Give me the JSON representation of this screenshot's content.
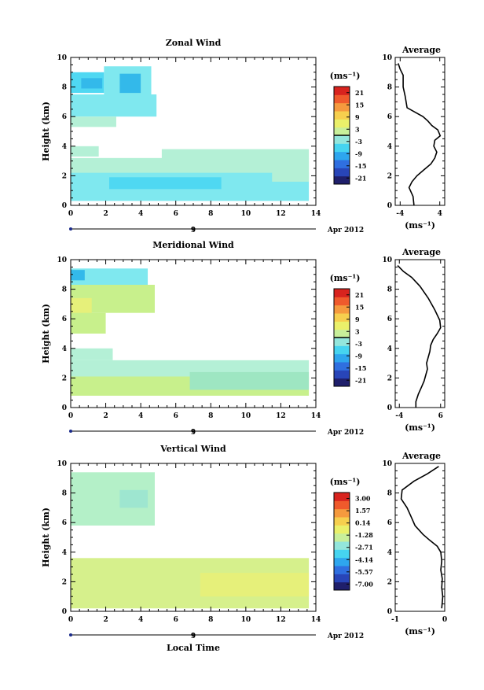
{
  "chart_data": [
    {
      "type": "heatmap",
      "title": "Zonal Wind",
      "xlabel": "",
      "ylabel": "Height (km)",
      "xlim": [
        0,
        14
      ],
      "ylim": [
        0,
        10
      ],
      "xticks": [
        "0",
        "2",
        "4",
        "6",
        "8",
        "10",
        "12",
        "14"
      ],
      "yticks": [
        "0",
        "2",
        "4",
        "6",
        "8",
        "10"
      ],
      "date_marker": "9",
      "date_label": "Apr 2012",
      "colorbar": {
        "unit": "(ms⁻¹)",
        "ticks": [
          "21",
          "15",
          "9",
          "3",
          "-3",
          "-9",
          "-15",
          "-21"
        ],
        "range": [
          -24,
          24
        ]
      },
      "patches": [
        {
          "color": "#4fd8f2",
          "t0": 0.0,
          "t1": 1.9,
          "h0": 7.6,
          "h1": 9.0
        },
        {
          "color": "#7fe8ef",
          "t0": 1.9,
          "t1": 4.6,
          "h0": 7.4,
          "h1": 9.4
        },
        {
          "color": "#33b9ea",
          "t0": 0.6,
          "t1": 1.8,
          "h0": 7.9,
          "h1": 8.6
        },
        {
          "color": "#33b9ea",
          "t0": 2.8,
          "t1": 4.0,
          "h0": 7.6,
          "h1": 8.9
        },
        {
          "color": "#7fe8ef",
          "t0": 0.0,
          "t1": 4.9,
          "h0": 6.0,
          "h1": 7.5
        },
        {
          "color": "#b4f0d6",
          "t0": 0.0,
          "t1": 2.6,
          "h0": 5.3,
          "h1": 6.0
        },
        {
          "color": "#b4f0d6",
          "t0": 0.0,
          "t1": 1.6,
          "h0": 3.3,
          "h1": 4.0
        },
        {
          "color": "#b4f0d6",
          "t0": 5.2,
          "t1": 13.6,
          "h0": 3.1,
          "h1": 3.8
        },
        {
          "color": "#b4f0d6",
          "t0": 0.0,
          "t1": 13.6,
          "h0": 2.1,
          "h1": 3.2
        },
        {
          "color": "#7fe8ef",
          "t0": 0.0,
          "t1": 13.6,
          "h0": 0.3,
          "h1": 2.2
        },
        {
          "color": "#4fd8f2",
          "t0": 2.2,
          "t1": 8.6,
          "h0": 1.1,
          "h1": 1.9
        },
        {
          "color": "#b4f0d6",
          "t0": 11.5,
          "t1": 13.6,
          "h0": 1.6,
          "h1": 3.0
        }
      ],
      "profile": {
        "xlim": [
          -5,
          5
        ],
        "xticks": [
          "-4",
          "4"
        ],
        "x": [
          -4.4,
          -4.0,
          -3.4,
          -3.4,
          -3.0,
          -2.6,
          -1.0,
          0.6,
          1.6,
          2.4,
          3.6,
          4.1,
          3.0,
          2.8,
          3.4,
          3.0,
          2.2,
          0.8,
          -0.6,
          -1.6,
          -2.2,
          -1.4,
          -1.2
        ],
        "y": [
          9.6,
          9.2,
          8.8,
          8.0,
          7.4,
          6.6,
          6.3,
          6.0,
          5.7,
          5.4,
          5.1,
          4.7,
          4.4,
          4.0,
          3.6,
          3.2,
          2.8,
          2.4,
          2.0,
          1.6,
          1.2,
          0.6,
          0.0
        ]
      }
    },
    {
      "type": "heatmap",
      "title": "Meridional Wind",
      "xlabel": "",
      "ylabel": "Height (km)",
      "xlim": [
        0,
        14
      ],
      "ylim": [
        0,
        10
      ],
      "xticks": [
        "0",
        "2",
        "4",
        "6",
        "8",
        "10",
        "12",
        "14"
      ],
      "yticks": [
        "0",
        "2",
        "4",
        "6",
        "8",
        "10"
      ],
      "date_marker": "9",
      "date_label": "Apr 2012",
      "colorbar": {
        "unit": "(ms⁻¹)",
        "ticks": [
          "21",
          "15",
          "9",
          "3",
          "-3",
          "-9",
          "-15",
          "-21"
        ],
        "range": [
          -24,
          24
        ]
      },
      "patches": [
        {
          "color": "#7fe8ef",
          "t0": 0.0,
          "t1": 4.4,
          "h0": 8.2,
          "h1": 9.4
        },
        {
          "color": "#33b9ea",
          "t0": 0.0,
          "t1": 0.8,
          "h0": 8.6,
          "h1": 9.3
        },
        {
          "color": "#c8f08c",
          "t0": 0.0,
          "t1": 4.8,
          "h0": 6.4,
          "h1": 8.3
        },
        {
          "color": "#e6f07a",
          "t0": 0.0,
          "t1": 1.2,
          "h0": 6.0,
          "h1": 7.4
        },
        {
          "color": "#c8f08c",
          "t0": 0.0,
          "t1": 2.0,
          "h0": 5.0,
          "h1": 6.4
        },
        {
          "color": "#b4f0d6",
          "t0": 0.0,
          "t1": 2.4,
          "h0": 3.2,
          "h1": 4.0
        },
        {
          "color": "#b4f0d6",
          "t0": 0.0,
          "t1": 13.6,
          "h0": 1.8,
          "h1": 3.2
        },
        {
          "color": "#c8f08c",
          "t0": 0.0,
          "t1": 13.6,
          "h0": 0.8,
          "h1": 2.1
        },
        {
          "color": "#9ee6c2",
          "t0": 6.8,
          "t1": 13.6,
          "h0": 1.2,
          "h1": 2.4
        }
      ],
      "profile": {
        "xlim": [
          -5,
          7
        ],
        "xticks": [
          "-4",
          "6"
        ],
        "x": [
          -4.4,
          -3.0,
          -1.0,
          1.0,
          3.0,
          4.6,
          5.8,
          6.0,
          5.2,
          4.2,
          3.6,
          3.4,
          3.0,
          2.6,
          2.8,
          2.4,
          2.0,
          1.4,
          0.6,
          0.0,
          0.0
        ],
        "y": [
          9.6,
          9.2,
          8.8,
          8.2,
          7.4,
          6.6,
          5.9,
          5.4,
          5.0,
          4.6,
          4.2,
          3.8,
          3.4,
          3.0,
          2.6,
          2.2,
          1.8,
          1.4,
          0.9,
          0.4,
          0.0
        ]
      }
    },
    {
      "type": "heatmap",
      "title": "Vertical Wind",
      "xlabel": "Local Time",
      "ylabel": "Height (km)",
      "xlim": [
        0,
        14
      ],
      "ylim": [
        0,
        10
      ],
      "xticks": [
        "0",
        "2",
        "4",
        "6",
        "8",
        "10",
        "12",
        "14"
      ],
      "yticks": [
        "0",
        "2",
        "4",
        "6",
        "8",
        "10"
      ],
      "date_marker": "9",
      "date_label": "Apr 2012",
      "colorbar": {
        "unit": "(ms⁻¹)",
        "ticks": [
          "3.00",
          "1.57",
          "0.14",
          "-1.28",
          "-2.71",
          "-4.14",
          "-5.57",
          "-7.00"
        ],
        "range": [
          -7.7,
          3.7
        ]
      },
      "patches": [
        {
          "color": "#b4f0c8",
          "t0": 0.0,
          "t1": 4.8,
          "h0": 5.8,
          "h1": 9.4
        },
        {
          "color": "#9ee6d0",
          "t0": 2.8,
          "t1": 4.4,
          "h0": 7.0,
          "h1": 8.2
        },
        {
          "color": "#d6f08c",
          "t0": 0.0,
          "t1": 13.6,
          "h0": 0.2,
          "h1": 3.6
        },
        {
          "color": "#e6f07a",
          "t0": 7.4,
          "t1": 13.6,
          "h0": 1.0,
          "h1": 2.6
        }
      ],
      "profile": {
        "xlim": [
          -1.0,
          0.0
        ],
        "xticks": [
          "-1",
          "0"
        ],
        "x": [
          -0.12,
          -0.35,
          -0.62,
          -0.86,
          -0.88,
          -0.76,
          -0.68,
          -0.6,
          -0.44,
          -0.3,
          -0.15,
          -0.08,
          -0.06,
          -0.08,
          -0.05,
          -0.06,
          -0.04,
          -0.06
        ],
        "y": [
          9.8,
          9.3,
          8.8,
          8.2,
          7.6,
          7.0,
          6.4,
          5.8,
          5.2,
          4.8,
          4.4,
          4.0,
          3.4,
          2.8,
          2.2,
          1.6,
          1.0,
          0.2
        ]
      }
    }
  ],
  "panel_label_average": "Average"
}
